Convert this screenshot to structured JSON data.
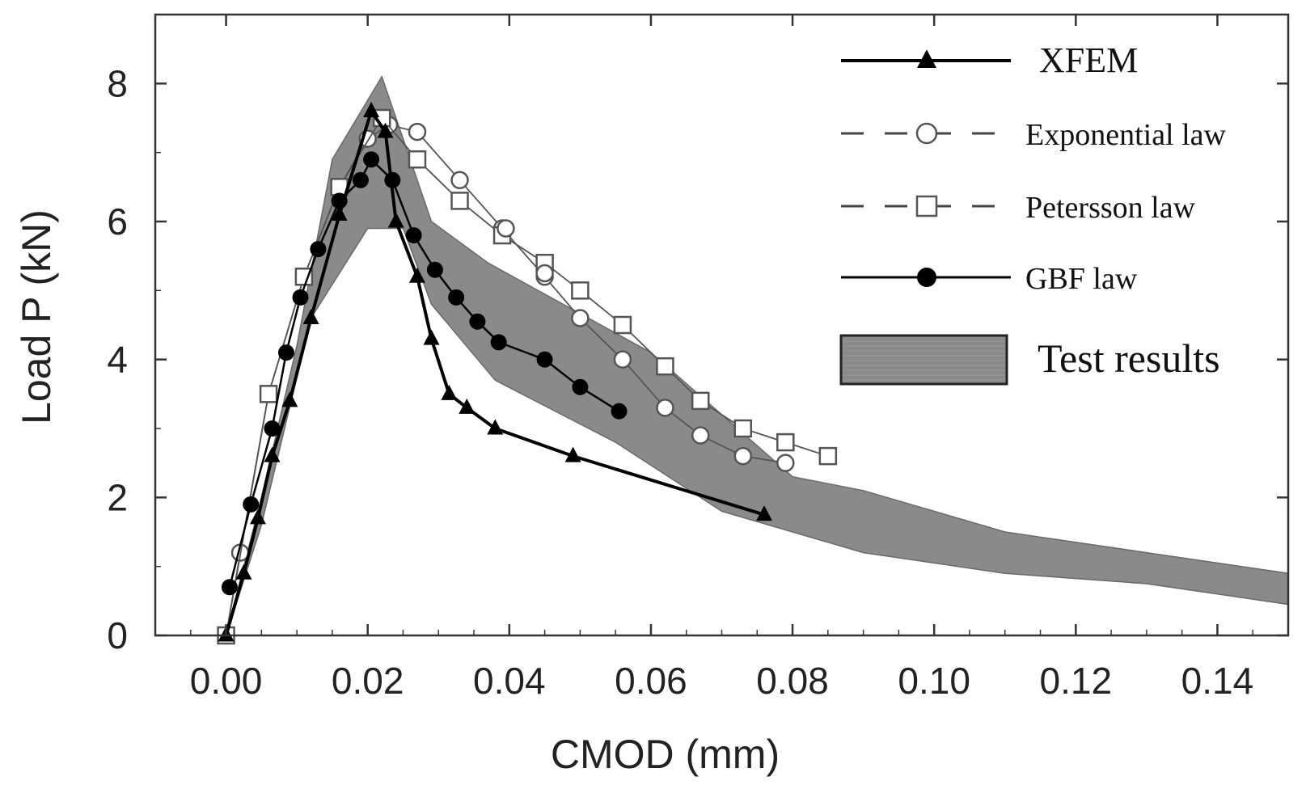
{
  "chart_data": {
    "type": "line",
    "title": "",
    "xlabel": "CMOD (mm)",
    "ylabel": "Load P (kN)",
    "xlim": [
      -0.01,
      0.15
    ],
    "ylim": [
      0,
      9
    ],
    "grid": false,
    "legend_position": "top-right",
    "x_ticks": [
      {
        "value": 0.0,
        "label": "0.00"
      },
      {
        "value": 0.02,
        "label": "0.02"
      },
      {
        "value": 0.04,
        "label": "0.04"
      },
      {
        "value": 0.06,
        "label": "0.06"
      },
      {
        "value": 0.08,
        "label": "0.08"
      },
      {
        "value": 0.1,
        "label": "0.10"
      },
      {
        "value": 0.12,
        "label": "0.12"
      },
      {
        "value": 0.14,
        "label": "0.14"
      }
    ],
    "y_ticks": [
      {
        "value": 0,
        "label": "0"
      },
      {
        "value": 2,
        "label": "2"
      },
      {
        "value": 4,
        "label": "4"
      },
      {
        "value": 6,
        "label": "6"
      },
      {
        "value": 8,
        "label": "8"
      }
    ],
    "band": {
      "name": "Test results",
      "color": "#8a8a8a",
      "upper": [
        [
          0.0,
          0.0
        ],
        [
          0.005,
          2.0
        ],
        [
          0.01,
          4.2
        ],
        [
          0.015,
          6.9
        ],
        [
          0.022,
          8.1
        ],
        [
          0.029,
          6.0
        ],
        [
          0.037,
          5.4
        ],
        [
          0.06,
          4.1
        ],
        [
          0.08,
          2.3
        ],
        [
          0.09,
          2.1
        ],
        [
          0.11,
          1.5
        ],
        [
          0.13,
          1.2
        ],
        [
          0.15,
          0.9
        ]
      ],
      "lower": [
        [
          0.15,
          0.45
        ],
        [
          0.13,
          0.75
        ],
        [
          0.11,
          0.9
        ],
        [
          0.09,
          1.2
        ],
        [
          0.07,
          1.8
        ],
        [
          0.055,
          2.8
        ],
        [
          0.038,
          3.7
        ],
        [
          0.029,
          4.8
        ],
        [
          0.025,
          5.9
        ],
        [
          0.02,
          5.9
        ],
        [
          0.012,
          4.6
        ],
        [
          0.005,
          1.6
        ],
        [
          0.0,
          0.0
        ]
      ]
    },
    "series": [
      {
        "name": "XFEM",
        "marker": "triangle",
        "style": "solid",
        "color": "#000000",
        "x": [
          0.0,
          0.0025,
          0.0045,
          0.0065,
          0.009,
          0.012,
          0.016,
          0.0205,
          0.0225,
          0.024,
          0.027,
          0.029,
          0.0315,
          0.034,
          0.038,
          0.049,
          0.076
        ],
        "y": [
          0.0,
          0.9,
          1.7,
          2.6,
          3.4,
          4.6,
          6.1,
          7.6,
          7.3,
          6.0,
          5.2,
          4.3,
          3.5,
          3.3,
          3.0,
          2.6,
          1.75
        ]
      },
      {
        "name": "Exponential law",
        "marker": "circle-open",
        "style": "dashed",
        "color": "#555555",
        "x": [
          0.0,
          0.002,
          0.006,
          0.011,
          0.016,
          0.02,
          0.023,
          0.027,
          0.033,
          0.039,
          0.045,
          0.05,
          0.056,
          0.062,
          0.067,
          0.073,
          0.079
        ],
        "y": [
          0.0,
          1.2,
          3.5,
          5.2,
          6.5,
          7.2,
          7.4,
          7.3,
          6.6,
          5.9,
          5.2,
          4.6,
          4.0,
          3.3,
          2.9,
          2.6,
          2.5
        ]
      },
      {
        "name": "Petersson law",
        "marker": "square-open",
        "style": "dashed",
        "color": "#555555",
        "x": [
          0.0,
          0.006,
          0.011,
          0.016,
          0.022,
          0.027,
          0.033,
          0.039,
          0.045,
          0.05,
          0.056,
          0.062,
          0.067,
          0.073,
          0.079,
          0.085
        ],
        "y": [
          0.0,
          3.5,
          5.2,
          6.5,
          7.5,
          6.9,
          6.3,
          5.8,
          5.4,
          5.0,
          4.5,
          3.9,
          3.4,
          3.0,
          2.8,
          2.6
        ],
        "extra_open_circles": [
          [
            0.0395,
            5.9
          ],
          [
            0.045,
            5.25
          ]
        ]
      },
      {
        "name": "GBF law",
        "marker": "circle-filled",
        "style": "solid",
        "color": "#000000",
        "x": [
          0.0005,
          0.0035,
          0.0065,
          0.0085,
          0.0105,
          0.013,
          0.016,
          0.019,
          0.0205,
          0.0235,
          0.0265,
          0.0295,
          0.0325,
          0.0355,
          0.0385,
          0.045,
          0.05,
          0.0555
        ],
        "y": [
          0.7,
          1.9,
          3.0,
          4.1,
          4.9,
          5.6,
          6.3,
          6.6,
          6.9,
          6.6,
          5.8,
          5.3,
          4.9,
          4.55,
          4.25,
          4.0,
          3.6,
          3.25
        ]
      }
    ]
  }
}
